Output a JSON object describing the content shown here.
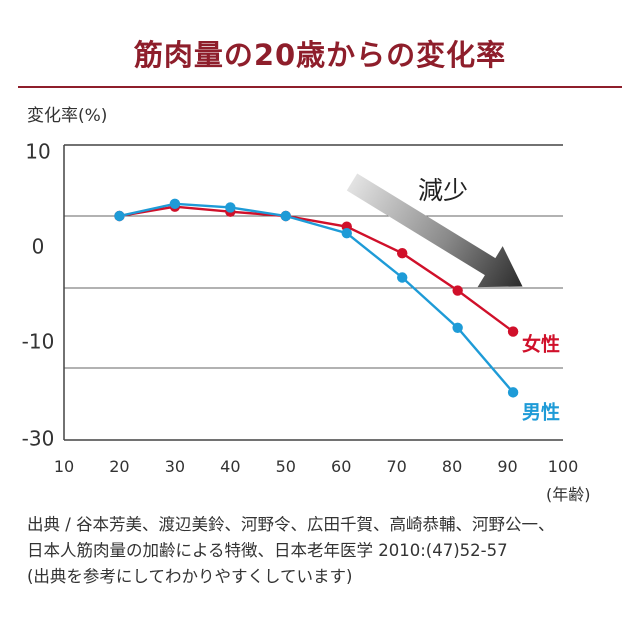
{
  "title": "筋肉量の20歳からの変化率",
  "colors": {
    "title": "#8e1e2b",
    "female": "#d0102a",
    "male": "#1e9bd7",
    "arrow_dark": "#2b2b2b",
    "axis": "#444444",
    "grid": "#666666"
  },
  "chart_data": {
    "type": "line",
    "ylabel": "変化率(%)",
    "xunit": "(年齢)",
    "x_ticks": [
      "10",
      "20",
      "30",
      "40",
      "50",
      "60",
      "70",
      "80",
      "90",
      "100"
    ],
    "y_ticks": [
      "10",
      "0",
      "-10",
      "-30"
    ],
    "xlim": [
      10,
      100
    ],
    "grid": "horizontal",
    "annotation": "減少",
    "series": [
      {
        "name": "女性",
        "color": "#d0102a",
        "points": [
          [
            20,
            0
          ],
          [
            30,
            1.3
          ],
          [
            40,
            0.6
          ],
          [
            50,
            0
          ],
          [
            61,
            -1.5
          ],
          [
            71,
            -5.2
          ],
          [
            81,
            -10.4
          ],
          [
            91,
            -15.8
          ]
        ]
      },
      {
        "name": "男性",
        "color": "#1e9bd7",
        "points": [
          [
            20,
            0
          ],
          [
            30,
            1.7
          ],
          [
            40,
            1.2
          ],
          [
            50,
            0
          ],
          [
            61,
            -2.4
          ],
          [
            71,
            -8.6
          ],
          [
            81,
            -15.3
          ],
          [
            91,
            -23.8
          ]
        ]
      }
    ]
  },
  "source_lines": [
    "出典 / 谷本芳美、渡辺美鈴、河野令、広田千賀、高崎恭輔、河野公一、",
    "日本人筋肉量の加齢による特徴、日本老年医学 2010:(47)52-57",
    "(出典を参考にしてわかりやすくしています)"
  ]
}
